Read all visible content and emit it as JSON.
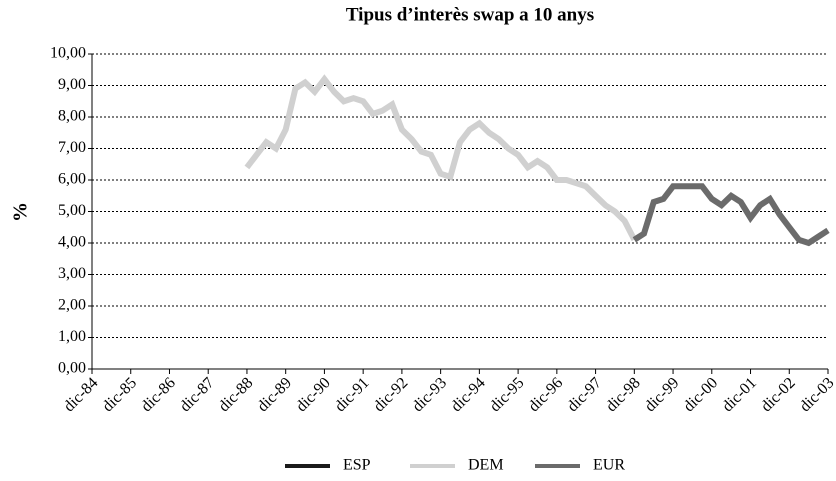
{
  "chart_data": {
    "type": "line",
    "title": "Tipus d’interès swap a 10 anys",
    "y_label": "%",
    "categories": [
      "dic-84",
      null,
      null,
      null,
      "dic-85",
      null,
      null,
      null,
      "dic-86",
      null,
      null,
      null,
      "dic-87",
      null,
      null,
      null,
      "dic-88",
      null,
      null,
      null,
      "dic-89",
      null,
      null,
      null,
      "dic-90",
      null,
      null,
      null,
      "dic-91",
      null,
      null,
      null,
      "dic-92",
      null,
      null,
      null,
      "dic-93",
      null,
      null,
      null,
      "dic-94",
      null,
      null,
      null,
      "dic-95",
      null,
      null,
      null,
      "dic-96",
      null,
      null,
      null,
      "dic-97",
      null,
      null,
      null,
      "dic-98",
      null,
      null,
      null,
      "dic-99",
      null,
      null,
      null,
      "dic-00",
      null,
      null,
      null,
      "dic-01",
      null,
      null,
      null,
      "dic-02",
      null,
      null,
      null,
      "dic-03"
    ],
    "series": [
      {
        "name": "ESP",
        "color": "#1a1a1a",
        "values": [
          null,
          null,
          null,
          null,
          null,
          null,
          null,
          null,
          null,
          null,
          null,
          null,
          null,
          null,
          null,
          null,
          null,
          null,
          null,
          null,
          null,
          null,
          null,
          null,
          null,
          null,
          null,
          null,
          null,
          null,
          null,
          null,
          null,
          null,
          null,
          null,
          null,
          null,
          null,
          null,
          null,
          null,
          null,
          null,
          null,
          null,
          null,
          null,
          null,
          null,
          null,
          null,
          null,
          null,
          null,
          null,
          null,
          null,
          null,
          null,
          null,
          null,
          null,
          null,
          null,
          null,
          null,
          null,
          null,
          null,
          null,
          null,
          null,
          null,
          null,
          null,
          null
        ]
      },
      {
        "name": "DEM",
        "color": "#d0d0d0",
        "values": [
          null,
          null,
          null,
          null,
          null,
          null,
          null,
          null,
          null,
          null,
          null,
          null,
          null,
          null,
          null,
          null,
          6.4,
          6.8,
          7.2,
          7.0,
          7.6,
          8.9,
          9.1,
          8.8,
          9.2,
          8.8,
          8.5,
          8.6,
          8.5,
          8.1,
          8.2,
          8.4,
          7.6,
          7.3,
          6.9,
          6.8,
          6.2,
          6.1,
          7.2,
          7.6,
          7.8,
          7.5,
          7.3,
          7.0,
          6.8,
          6.4,
          6.6,
          6.4,
          6.0,
          6.0,
          5.9,
          5.8,
          5.5,
          5.2,
          5.0,
          4.7,
          4.1,
          null,
          null,
          null,
          null,
          null,
          null,
          null,
          null,
          null,
          null,
          null,
          null,
          null,
          null,
          null,
          null,
          null,
          null,
          null,
          null
        ]
      },
      {
        "name": "EUR",
        "color": "#6b6b6b",
        "values": [
          null,
          null,
          null,
          null,
          null,
          null,
          null,
          null,
          null,
          null,
          null,
          null,
          null,
          null,
          null,
          null,
          null,
          null,
          null,
          null,
          null,
          null,
          null,
          null,
          null,
          null,
          null,
          null,
          null,
          null,
          null,
          null,
          null,
          null,
          null,
          null,
          null,
          null,
          null,
          null,
          null,
          null,
          null,
          null,
          null,
          null,
          null,
          null,
          null,
          null,
          null,
          null,
          null,
          null,
          null,
          null,
          4.1,
          4.3,
          5.3,
          5.4,
          5.8,
          5.8,
          5.8,
          5.8,
          5.4,
          5.2,
          5.5,
          5.3,
          4.8,
          5.2,
          5.4,
          4.9,
          4.5,
          4.1,
          4.0,
          4.2,
          4.4
        ]
      }
    ],
    "ylim": [
      0,
      10
    ],
    "yticks": [
      {
        "value": 0,
        "label": "0,00"
      },
      {
        "value": 1,
        "label": "1,00"
      },
      {
        "value": 2,
        "label": "2,00"
      },
      {
        "value": 3,
        "label": "3,00"
      },
      {
        "value": 4,
        "label": "4,00"
      },
      {
        "value": 5,
        "label": "5,00"
      },
      {
        "value": 6,
        "label": "6,00"
      },
      {
        "value": 7,
        "label": "7,00"
      },
      {
        "value": 8,
        "label": "8,00"
      },
      {
        "value": 9,
        "label": "9,00"
      },
      {
        "value": 10,
        "label": "10,00"
      }
    ],
    "grid": true,
    "legend": "bottom"
  }
}
